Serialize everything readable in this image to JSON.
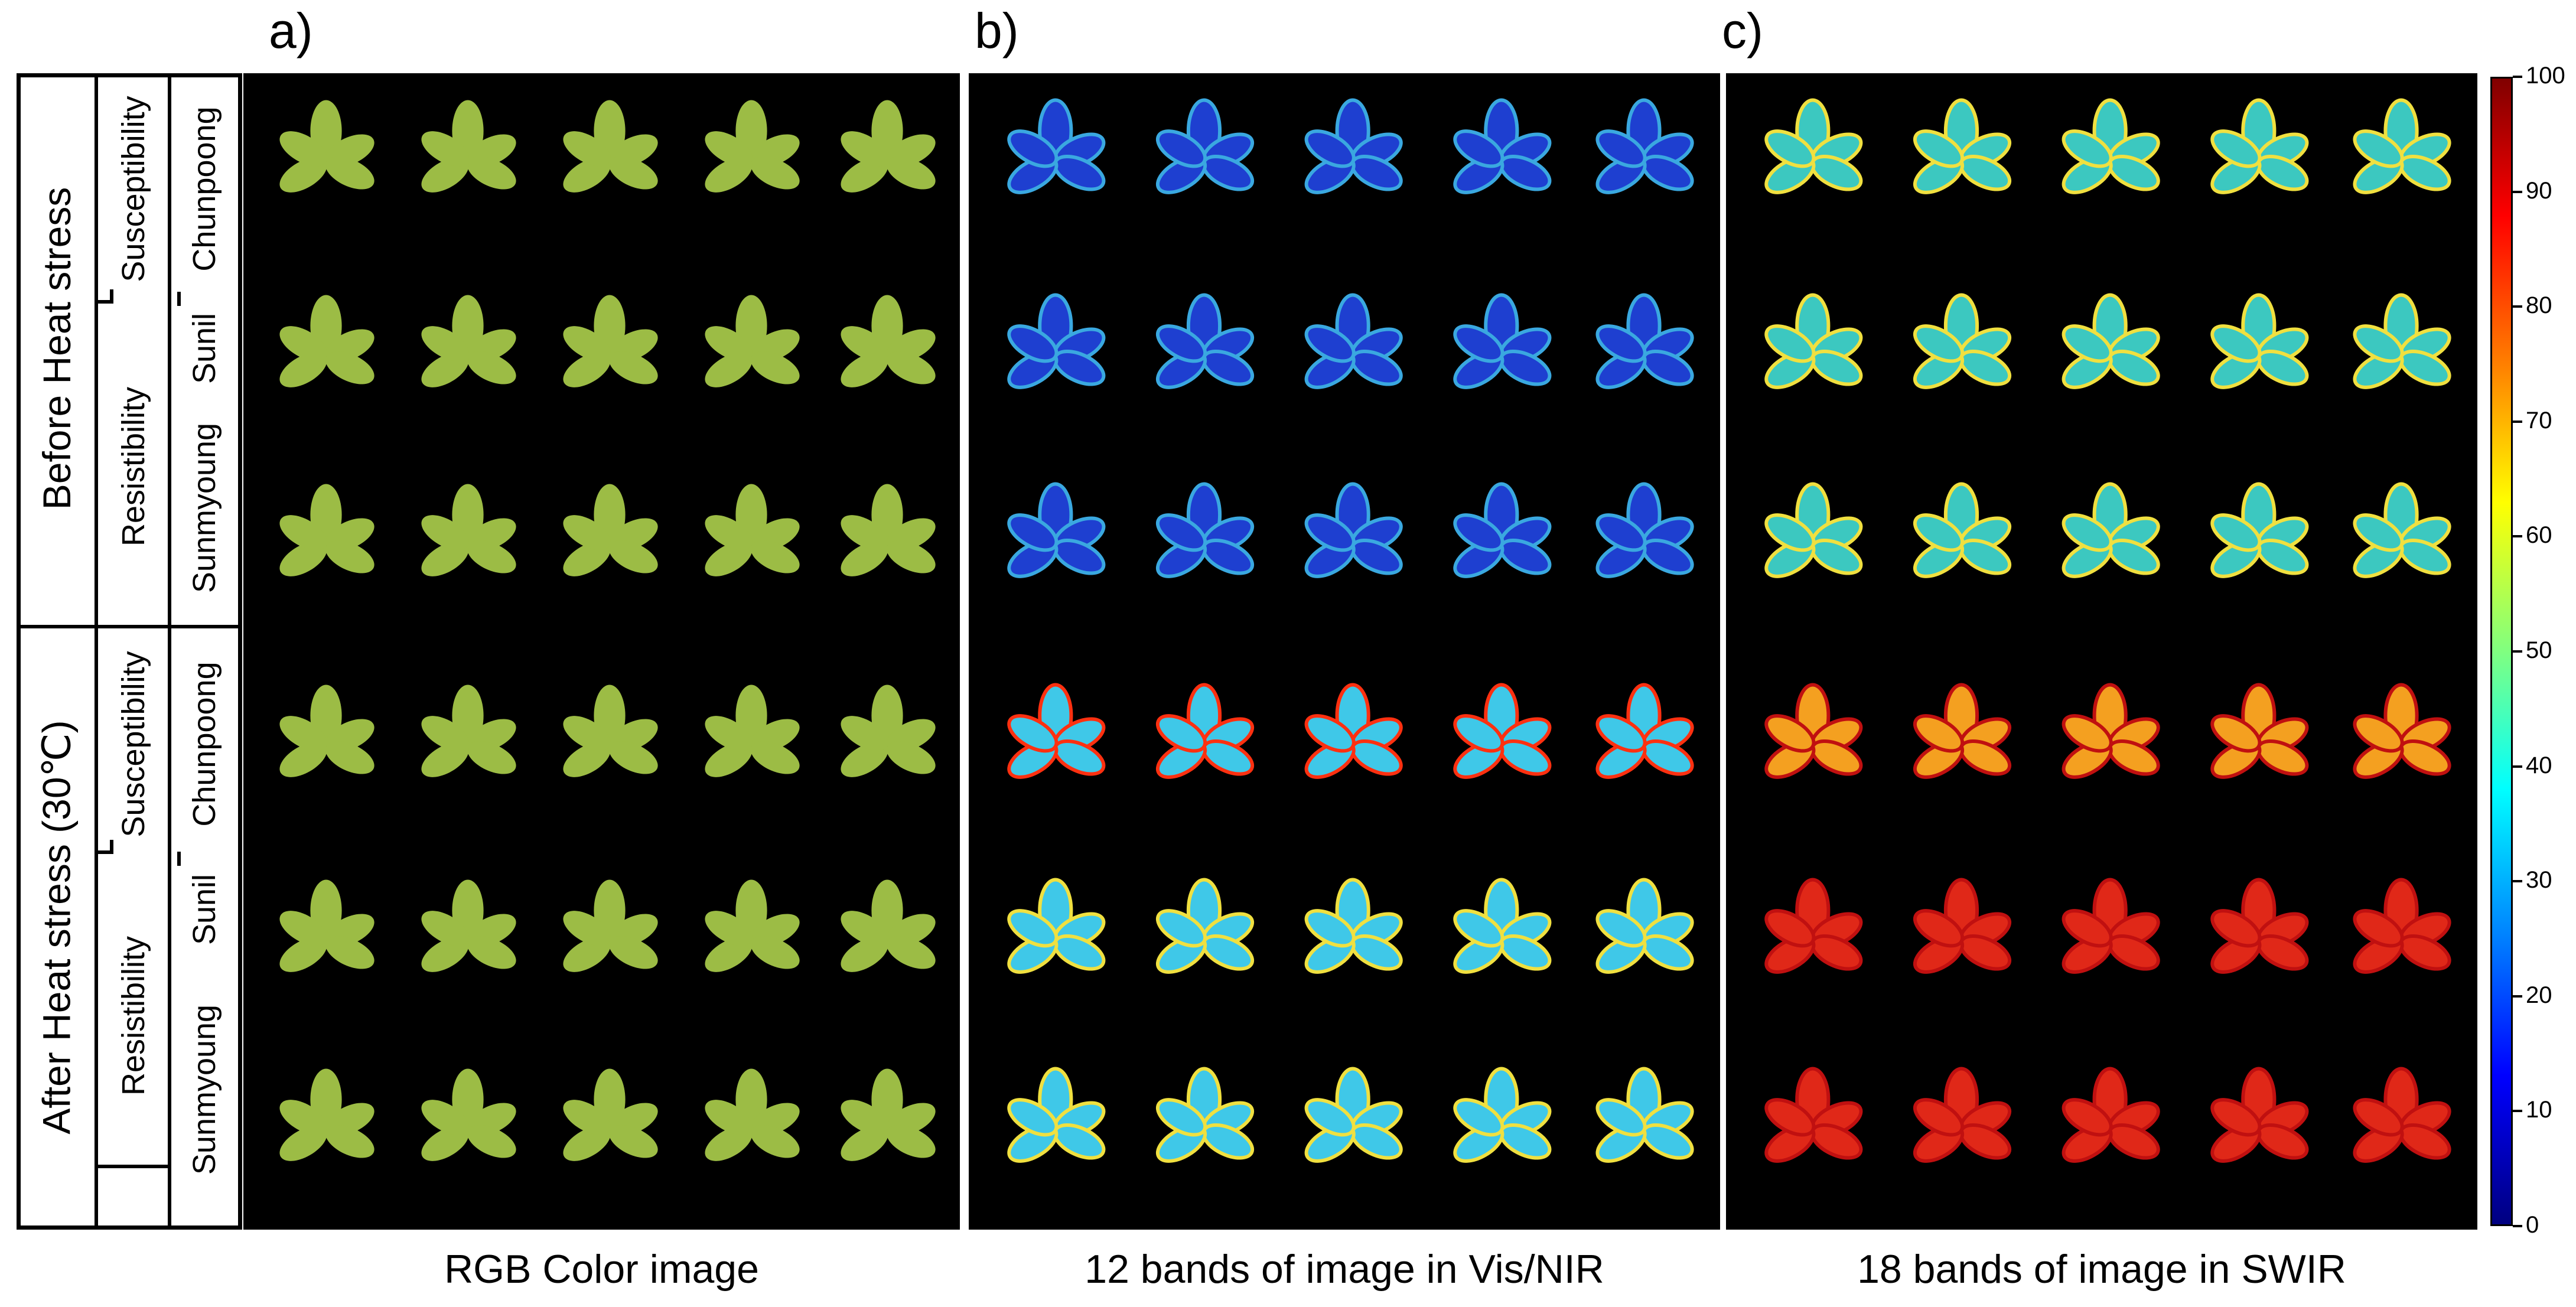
{
  "panel_letters": {
    "a": "a)",
    "b": "b)",
    "c": "c)"
  },
  "captions": {
    "a": "RGB Color image",
    "b": "12 bands of image in Vis/NIR",
    "c": "18 bands of image in SWIR"
  },
  "conditions": {
    "before": "Before Heat stress",
    "after": "After Heat stress (30℃)"
  },
  "categories": {
    "susceptibility": "Susceptibility",
    "resistibility": "Resistibility"
  },
  "cultivars": {
    "chunpoong": "Chunpoong",
    "sunil": "Sunil",
    "sunmyoung": "Sunmyoung"
  },
  "colorbar": {
    "min": 0,
    "max": 100,
    "ticks": [
      "100",
      "90",
      "80",
      "70",
      "60",
      "50",
      "40",
      "30",
      "20",
      "10",
      "0"
    ],
    "colormap": "jet"
  },
  "colors": {
    "rgb_leaf": "#9cbc45",
    "vis_before": "#1e3fd0",
    "vis_after": "#3fc8e8",
    "swir_before": "#3cc8c0",
    "swir_after_top": "#f4a020",
    "swir_after_bottom": "#e02818"
  }
}
